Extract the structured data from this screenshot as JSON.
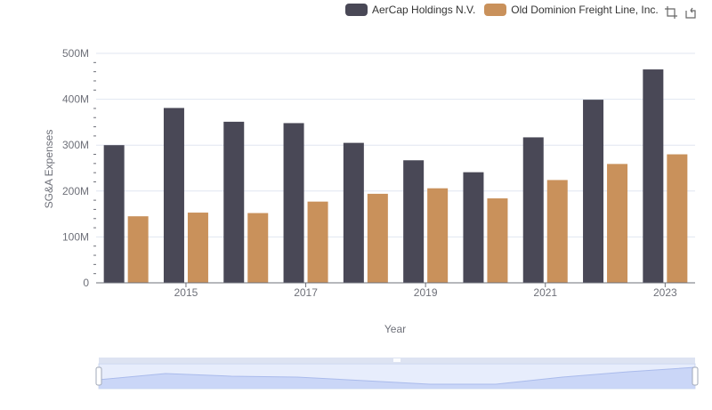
{
  "legend": {
    "items": [
      {
        "label": "AerCap Holdings N.V.",
        "color": "#494856"
      },
      {
        "label": "Old Dominion Freight Line, Inc.",
        "color": "#c9915b"
      }
    ]
  },
  "toolbox": {
    "zoom_icon": "zoom-icon",
    "restore_icon": "restore-icon"
  },
  "chart_data": {
    "type": "bar",
    "categories": [
      "2014",
      "2015",
      "2016",
      "2017",
      "2018",
      "2019",
      "2020",
      "2021",
      "2022",
      "2023"
    ],
    "x_tick_labels": [
      "2015",
      "2017",
      "2019",
      "2021",
      "2023"
    ],
    "xlabel": "Year",
    "ylabel": "SG&A Expenses",
    "ylim": [
      0,
      500000000
    ],
    "y_ticks": [
      0,
      100000000,
      200000000,
      300000000,
      400000000,
      500000000
    ],
    "y_tick_labels": [
      "0",
      "100M",
      "200M",
      "300M",
      "400M",
      "500M"
    ],
    "series": [
      {
        "name": "AerCap Holdings N.V.",
        "color": "#494856",
        "values": [
          300000000,
          381000000,
          351000000,
          348000000,
          305000000,
          267000000,
          241000000,
          317000000,
          399000000,
          465000000
        ]
      },
      {
        "name": "Old Dominion Freight Line, Inc.",
        "color": "#c9915b",
        "values": [
          145000000,
          153000000,
          152000000,
          177000000,
          194000000,
          206000000,
          184000000,
          224000000,
          259000000,
          280000000
        ]
      }
    ],
    "grid": true,
    "legend_position": "top-right"
  }
}
